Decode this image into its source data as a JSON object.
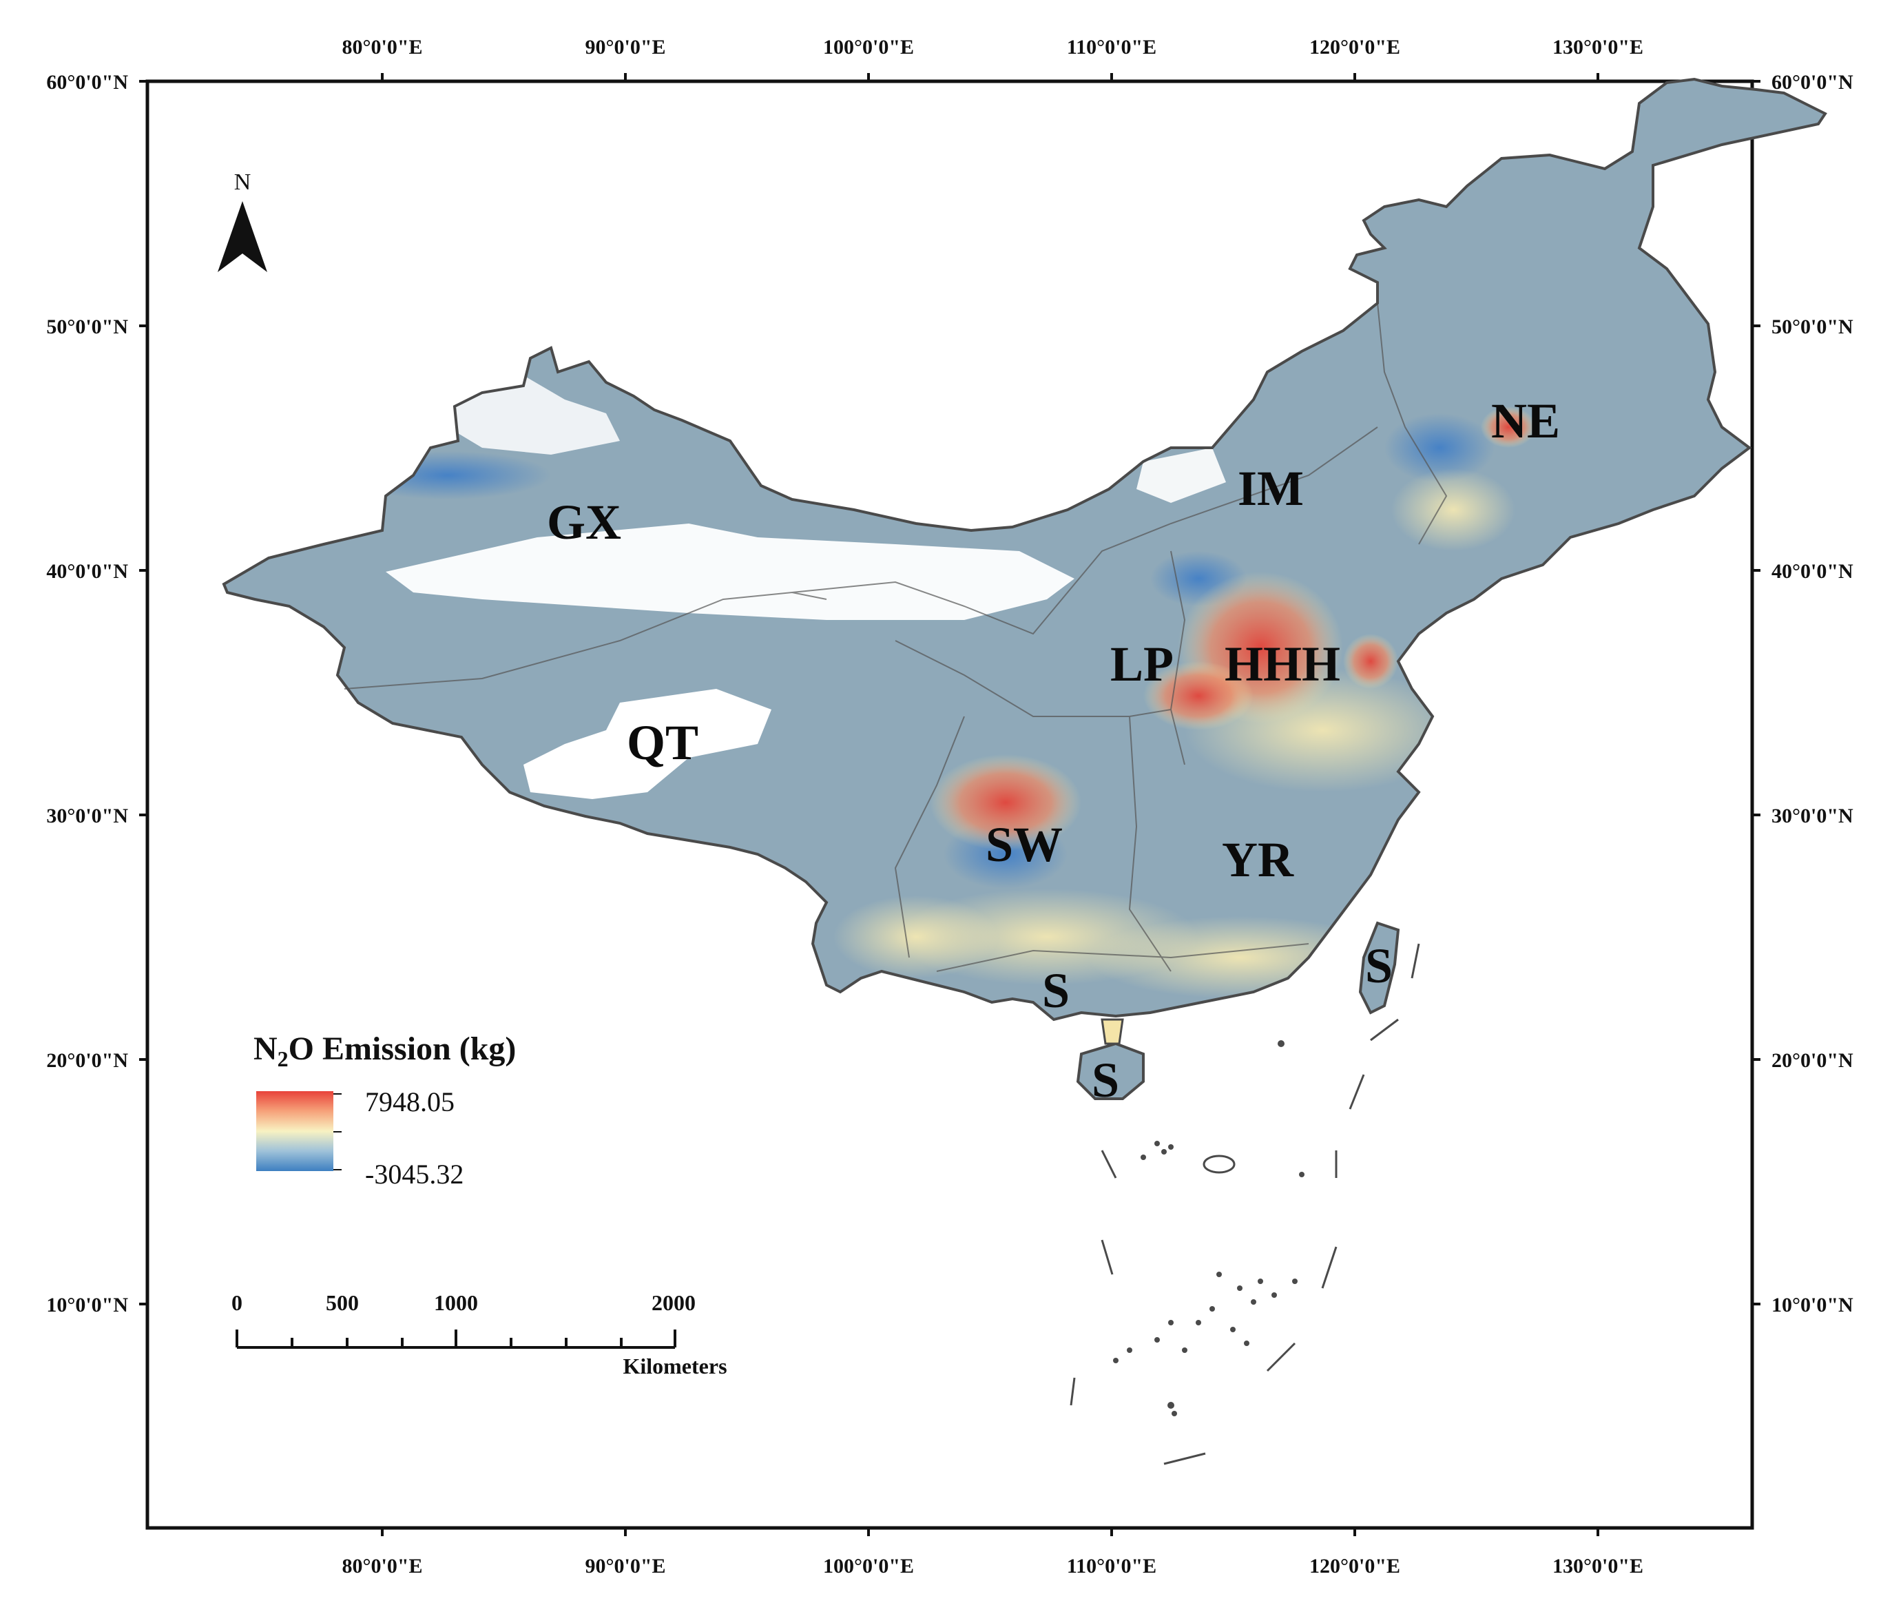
{
  "map": {
    "lon_labels": [
      "80°0'0\"E",
      "90°0'0\"E",
      "100°0'0\"E",
      "110°0'0\"E",
      "120°0'0\"E",
      "130°0'0\"E"
    ],
    "lat_labels": [
      "60°0'0\"N",
      "50°0'0\"N",
      "40°0'0\"N",
      "30°0'0\"N",
      "20°0'0\"N",
      "10°0'0\"N"
    ],
    "regions": {
      "gx": "GX",
      "qt": "QT",
      "ne": "NE",
      "im": "IM",
      "lp": "LP",
      "hhh": "HHH",
      "sw": "SW",
      "yr": "YR",
      "s_guangxi": "S",
      "s_taiwan": "S",
      "s_hainan": "S"
    },
    "north_arrow": {
      "letter": "N",
      "icon": "north-arrow-icon"
    },
    "legend": {
      "title_prefix": "N",
      "title_sub": "2",
      "title_suffix": "O Emission (kg)",
      "max": "7948.05",
      "min": "-3045.32",
      "colors": [
        "#e8423a",
        "#f6a27a",
        "#f8f2c2",
        "#9fc2d9",
        "#3d7fc1"
      ]
    },
    "scale_bar": {
      "ticks": [
        "0",
        "500",
        "1000",
        "2000"
      ],
      "unit": "Kilometers"
    },
    "palette": {
      "land": "#8fa9b9",
      "border": "#4a4a4a",
      "high": "#e3443a",
      "mid": "#f4e4a8",
      "low": "#3a7bc8"
    }
  }
}
